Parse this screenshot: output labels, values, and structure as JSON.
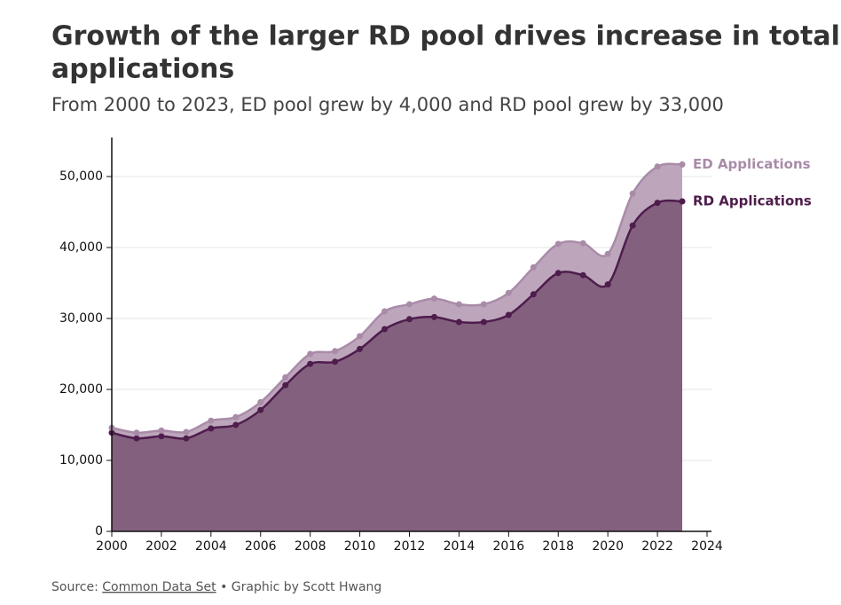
{
  "chart_data": {
    "type": "stacked_area",
    "title": [
      "Growth of the larger RD pool drives increase in total",
      "applications"
    ],
    "subtitle": "From 2000 to 2023, ED pool grew by 4,000 and RD pool grew by 33,000",
    "x": [
      2000,
      2001,
      2002,
      2003,
      2004,
      2005,
      2006,
      2007,
      2008,
      2009,
      2010,
      2011,
      2012,
      2013,
      2014,
      2015,
      2016,
      2017,
      2018,
      2019,
      2020,
      2021,
      2022,
      2023
    ],
    "series": [
      {
        "name": "RD Applications",
        "color": "#4e1d4c",
        "fill": "#84607f",
        "values": [
          13900,
          13100,
          13400,
          13100,
          14500,
          15000,
          17100,
          20600,
          23600,
          23900,
          25700,
          28500,
          29900,
          30200,
          29500,
          29500,
          30500,
          33400,
          36400,
          36100,
          34800,
          43100,
          46300,
          46500
        ]
      },
      {
        "name": "ED Applications",
        "color": "#a98ba8",
        "fill": "#bda6bc",
        "values": [
          700,
          800,
          800,
          900,
          1100,
          1100,
          1100,
          1100,
          1400,
          1500,
          1800,
          2500,
          2100,
          2600,
          2500,
          2500,
          3100,
          3800,
          4100,
          4500,
          4300,
          4500,
          5100,
          5200
        ]
      }
    ],
    "xlim": [
      2000,
      2024
    ],
    "xticks": [
      2000,
      2002,
      2004,
      2006,
      2008,
      2010,
      2012,
      2014,
      2016,
      2018,
      2020,
      2022,
      2024
    ],
    "ylim": [
      0,
      55500
    ],
    "yticks": [
      0,
      {
        "value": 10000,
        "label": "10,000"
      },
      {
        "value": 20000,
        "label": "20,000"
      },
      {
        "value": 30000,
        "label": "30,000"
      },
      {
        "value": 40000,
        "label": "40,000"
      },
      {
        "value": 50000,
        "label": "50,000"
      }
    ],
    "grid": true,
    "source_label": "Source:",
    "source_link": "Common Data Set",
    "credit": "• Graphic by Scott Hwang"
  }
}
